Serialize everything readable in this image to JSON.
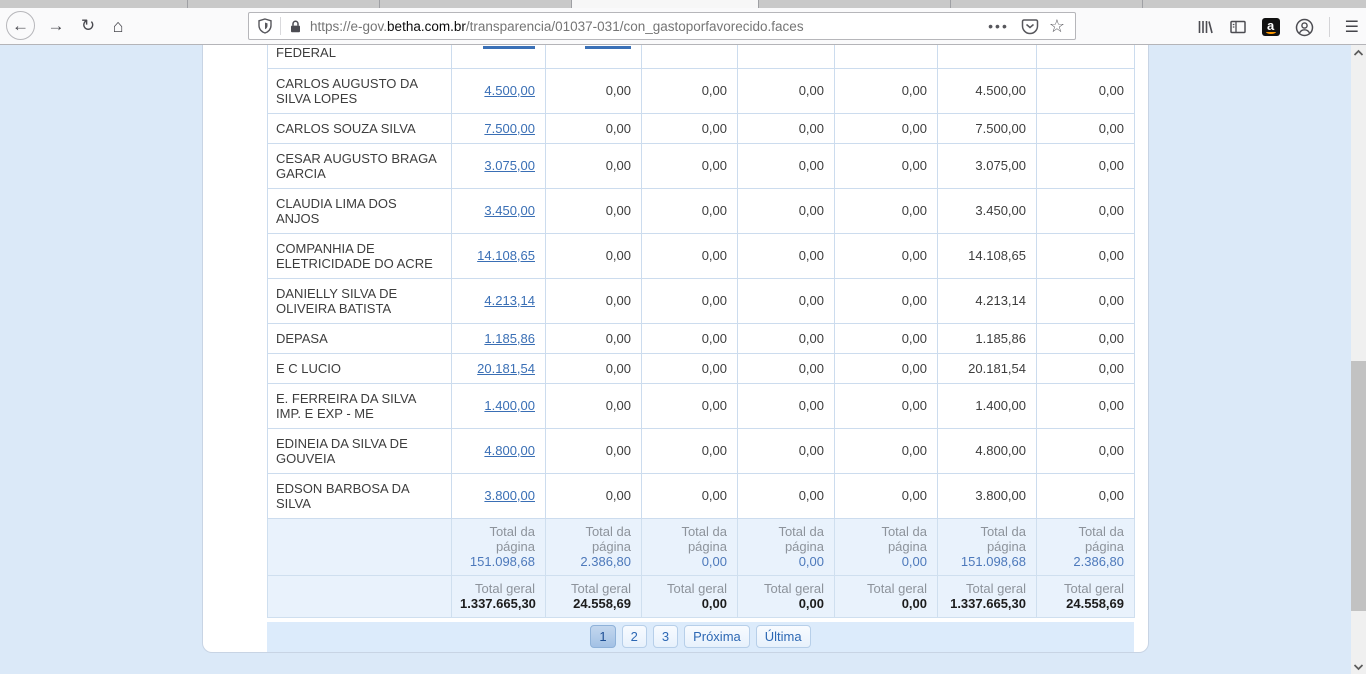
{
  "browser": {
    "url": {
      "prefix": "https://e-gov.",
      "domain": "betha.com.br",
      "path": "/transparencia/01037-031/con_gastoporfavorecido.faces"
    },
    "toolbar_icons": {
      "back": "←",
      "forward": "→",
      "reload": "↻",
      "home": "⌂",
      "page_actions": "•••",
      "bookmark_star": "☆",
      "menu": "☰",
      "shield": "tracking-protection-shield",
      "lock": "https-lock",
      "pocket": "pocket-save",
      "library": "library",
      "sidebar": "sidebar",
      "amazon": "a",
      "account": "account-person"
    }
  },
  "table": {
    "partial_row_text": "FEDERAL",
    "rows": [
      {
        "name": "CARLOS AUGUSTO DA SILVA LOPES",
        "values": [
          "4.500,00",
          "0,00",
          "0,00",
          "0,00",
          "0,00",
          "4.500,00",
          "0,00"
        ]
      },
      {
        "name": "CARLOS SOUZA SILVA",
        "values": [
          "7.500,00",
          "0,00",
          "0,00",
          "0,00",
          "0,00",
          "7.500,00",
          "0,00"
        ]
      },
      {
        "name": "CESAR AUGUSTO BRAGA GARCIA",
        "values": [
          "3.075,00",
          "0,00",
          "0,00",
          "0,00",
          "0,00",
          "3.075,00",
          "0,00"
        ]
      },
      {
        "name": "CLAUDIA LIMA DOS ANJOS",
        "values": [
          "3.450,00",
          "0,00",
          "0,00",
          "0,00",
          "0,00",
          "3.450,00",
          "0,00"
        ]
      },
      {
        "name": "COMPANHIA DE ELETRICIDADE DO ACRE",
        "values": [
          "14.108,65",
          "0,00",
          "0,00",
          "0,00",
          "0,00",
          "14.108,65",
          "0,00"
        ]
      },
      {
        "name": "DANIELLY SILVA DE OLIVEIRA BATISTA",
        "values": [
          "4.213,14",
          "0,00",
          "0,00",
          "0,00",
          "0,00",
          "4.213,14",
          "0,00"
        ]
      },
      {
        "name": "DEPASA",
        "values": [
          "1.185,86",
          "0,00",
          "0,00",
          "0,00",
          "0,00",
          "1.185,86",
          "0,00"
        ]
      },
      {
        "name": "E C LUCIO",
        "values": [
          "20.181,54",
          "0,00",
          "0,00",
          "0,00",
          "0,00",
          "20.181,54",
          "0,00"
        ]
      },
      {
        "name": "E. FERREIRA DA SILVA IMP. E EXP - ME",
        "values": [
          "1.400,00",
          "0,00",
          "0,00",
          "0,00",
          "0,00",
          "1.400,00",
          "0,00"
        ]
      },
      {
        "name": "EDINEIA DA SILVA DE GOUVEIA",
        "values": [
          "4.800,00",
          "0,00",
          "0,00",
          "0,00",
          "0,00",
          "4.800,00",
          "0,00"
        ]
      },
      {
        "name": "EDSON BARBOSA DA SILVA",
        "values": [
          "3.800,00",
          "0,00",
          "0,00",
          "0,00",
          "0,00",
          "3.800,00",
          "0,00"
        ]
      }
    ],
    "page_total_label": "Total da página",
    "page_totals": [
      "151.098,68",
      "2.386,80",
      "0,00",
      "0,00",
      "0,00",
      "151.098,68",
      "2.386,80"
    ],
    "grand_total_label": "Total geral",
    "grand_totals": [
      "1.337.665,30",
      "24.558,69",
      "0,00",
      "0,00",
      "0,00",
      "1.337.665,30",
      "24.558,69"
    ]
  },
  "pagination": {
    "pages": [
      "1",
      "2",
      "3"
    ],
    "active_page": "1",
    "next_label": "Próxima",
    "last_label": "Última"
  },
  "colors": {
    "link_blue": "#3a70b6",
    "page_background": "#dbe9f8",
    "totals_background": "#e9f2fc",
    "pagination_background": "#dcebfb",
    "page_total_value_blue": "#4d79bb"
  }
}
